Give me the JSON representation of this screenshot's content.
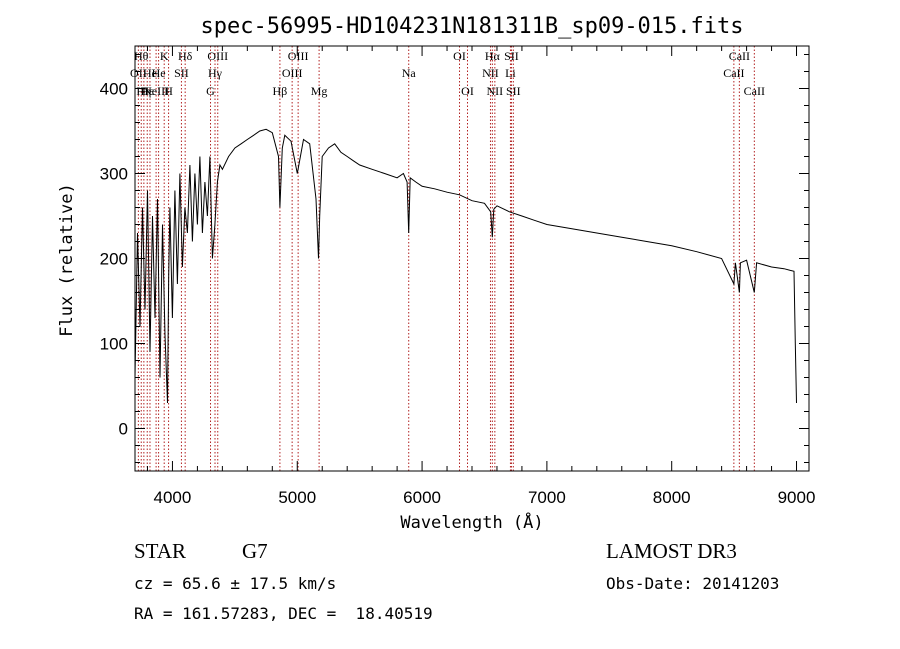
{
  "chart_data": {
    "type": "line",
    "title": "spec-56995-HD104231N181311B_sp09-015.fits",
    "xlabel": "Wavelength (Å)",
    "ylabel": "Flux (relative)",
    "xlim": [
      3700,
      9100
    ],
    "ylim": [
      -50,
      450
    ],
    "xticks": [
      4000,
      5000,
      6000,
      7000,
      8000,
      9000
    ],
    "yticks": [
      0,
      100,
      200,
      300,
      400
    ],
    "xtick_labels": [
      "4000",
      "5000",
      "6000",
      "7000",
      "8000",
      "9000"
    ],
    "ytick_labels": [
      "0",
      "100",
      "200",
      "300",
      "400"
    ],
    "spectrum": {
      "x": [
        3700,
        3720,
        3740,
        3760,
        3780,
        3800,
        3820,
        3840,
        3860,
        3880,
        3900,
        3920,
        3940,
        3960,
        3970,
        3980,
        4000,
        4020,
        4040,
        4060,
        4080,
        4100,
        4120,
        4140,
        4160,
        4180,
        4200,
        4220,
        4240,
        4260,
        4280,
        4300,
        4320,
        4340,
        4360,
        4380,
        4400,
        4450,
        4500,
        4550,
        4600,
        4650,
        4700,
        4750,
        4800,
        4850,
        4861,
        4880,
        4900,
        4950,
        5000,
        5050,
        5100,
        5150,
        5170,
        5180,
        5200,
        5250,
        5300,
        5350,
        5400,
        5450,
        5500,
        5600,
        5700,
        5800,
        5850,
        5880,
        5893,
        5905,
        5950,
        6000,
        6100,
        6200,
        6300,
        6400,
        6500,
        6550,
        6563,
        6575,
        6600,
        6700,
        6800,
        6900,
        7000,
        7200,
        7400,
        7600,
        7800,
        8000,
        8200,
        8400,
        8498,
        8510,
        8542,
        8550,
        8600,
        8662,
        8680,
        8800,
        8900,
        8950,
        8980,
        8990,
        9000
      ],
      "y": [
        60,
        230,
        120,
        260,
        140,
        280,
        90,
        250,
        130,
        270,
        60,
        240,
        110,
        30,
        180,
        260,
        130,
        280,
        170,
        300,
        190,
        260,
        230,
        310,
        220,
        300,
        240,
        320,
        230,
        290,
        250,
        320,
        200,
        240,
        290,
        310,
        305,
        320,
        330,
        335,
        340,
        345,
        350,
        352,
        348,
        320,
        260,
        330,
        345,
        338,
        300,
        340,
        335,
        270,
        200,
        250,
        320,
        330,
        335,
        325,
        320,
        315,
        310,
        305,
        300,
        295,
        300,
        290,
        230,
        295,
        290,
        285,
        282,
        278,
        275,
        268,
        265,
        255,
        225,
        258,
        262,
        255,
        250,
        245,
        240,
        235,
        230,
        225,
        220,
        215,
        208,
        200,
        170,
        195,
        160,
        195,
        198,
        160,
        195,
        190,
        188,
        186,
        185,
        100,
        30
      ]
    },
    "line_markers": [
      {
        "wavelength": 3727,
        "label": "OII",
        "row": 1
      },
      {
        "wavelength": 3750,
        "label": "Hθ",
        "row": 0
      },
      {
        "wavelength": 3771,
        "label": "Hη",
        "row": 2
      },
      {
        "wavelength": 3798,
        "label": "Hε",
        "row": 2
      },
      {
        "wavelength": 3820,
        "label": "He",
        "row": 1
      },
      {
        "wavelength": 3869,
        "label": "NeIII",
        "row": 2
      },
      {
        "wavelength": 3889,
        "label": "He",
        "row": 1
      },
      {
        "wavelength": 3934,
        "label": "K",
        "row": 0
      },
      {
        "wavelength": 3969,
        "label": "H",
        "row": 2
      },
      {
        "wavelength": 4072,
        "label": "SII",
        "row": 1
      },
      {
        "wavelength": 4102,
        "label": "Hδ",
        "row": 0
      },
      {
        "wavelength": 4305,
        "label": "G",
        "row": 2
      },
      {
        "wavelength": 4341,
        "label": "Hγ",
        "row": 1
      },
      {
        "wavelength": 4363,
        "label": "OIII",
        "row": 0
      },
      {
        "wavelength": 4861,
        "label": "Hβ",
        "row": 2
      },
      {
        "wavelength": 4959,
        "label": "OIII",
        "row": 1
      },
      {
        "wavelength": 5007,
        "label": "OIII",
        "row": 0
      },
      {
        "wavelength": 5175,
        "label": "Mg",
        "row": 2
      },
      {
        "wavelength": 5893,
        "label": "Na",
        "row": 1
      },
      {
        "wavelength": 6300,
        "label": "OI",
        "row": 0
      },
      {
        "wavelength": 6364,
        "label": "OI",
        "row": 2
      },
      {
        "wavelength": 6548,
        "label": "NII",
        "row": 1
      },
      {
        "wavelength": 6563,
        "label": "Hα",
        "row": 0
      },
      {
        "wavelength": 6583,
        "label": "NII",
        "row": 2
      },
      {
        "wavelength": 6708,
        "label": "Li",
        "row": 1
      },
      {
        "wavelength": 6716,
        "label": "SII",
        "row": 0
      },
      {
        "wavelength": 6731,
        "label": "SII",
        "row": 2
      },
      {
        "wavelength": 8498,
        "label": "CaII",
        "row": 1
      },
      {
        "wavelength": 8542,
        "label": "CaII",
        "row": 0
      },
      {
        "wavelength": 8662,
        "label": "CaII",
        "row": 2
      }
    ],
    "colors": {
      "spectrum": "#000000",
      "markers": "#b22222",
      "axes": "#000000"
    }
  },
  "info": {
    "object_class": "STAR",
    "subclass": "G7",
    "survey": "LAMOST DR3",
    "redshift": "cz = 65.6 ± 17.5 km/s",
    "obs_date": "Obs-Date: 20141203",
    "coords": "RA = 161.57283, DEC =  18.40519"
  }
}
